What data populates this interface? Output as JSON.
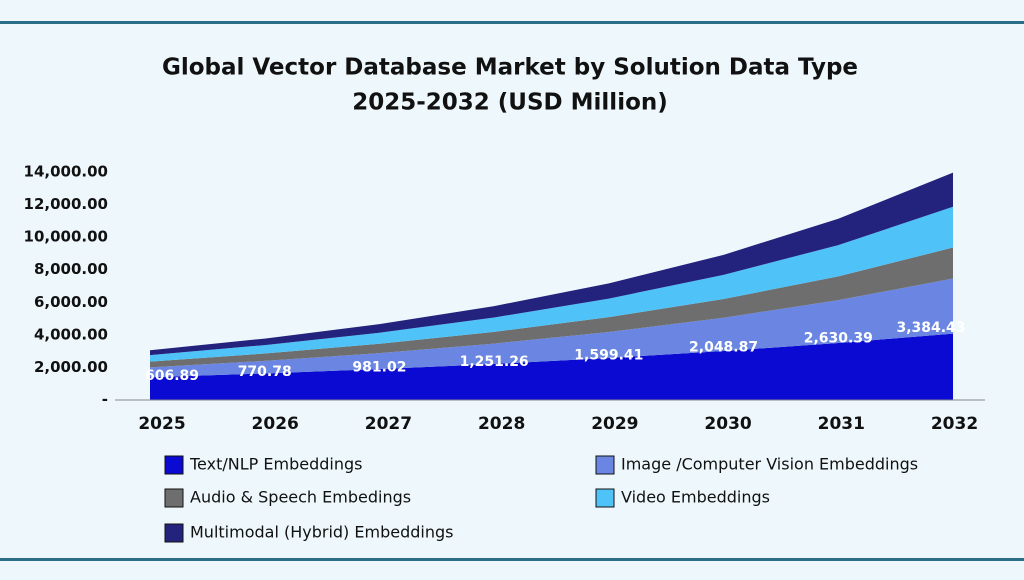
{
  "chart_data": {
    "type": "stacked-area",
    "title": "Global Vector Database Market by Solution Data Type",
    "subtitle": "2025-2032 (USD Million)",
    "categories": [
      "2025",
      "2026",
      "2027",
      "2028",
      "2029",
      "2030",
      "2031",
      "2032"
    ],
    "series": [
      {
        "name": "Text/NLP Embeddings",
        "color": "#0a0ad2",
        "values": [
          1400,
          1631,
          1900,
          2214,
          2579,
          3005,
          3500,
          4078
        ]
      },
      {
        "name": "Image /Computer Vision Embeddings",
        "color": "#6a86e2",
        "values": [
          606.89,
          770.78,
          981.02,
          1251.26,
          1599.41,
          2048.87,
          2630.39,
          3384.43
        ],
        "value_labels": [
          "606.89",
          "770.78",
          "981.02",
          "1,251.26",
          "1,599.41",
          "2,048.87",
          "2,630.39",
          "3,384.43"
        ]
      },
      {
        "name": "Audio & Speech Embedings",
        "color": "#6e6e6e",
        "values": [
          350,
          450,
          570,
          720,
          910,
          1150,
          1460,
          1900
        ]
      },
      {
        "name": "Video Embeddings",
        "color": "#4fc3f7",
        "values": [
          400,
          520,
          680,
          880,
          1140,
          1480,
          1920,
          2500
        ]
      },
      {
        "name": "Multimodal (Hybrid) Embeddings",
        "color": "#23237d",
        "values": [
          300,
          400,
          530,
          700,
          930,
          1230,
          1620,
          2100
        ]
      }
    ],
    "ylim": [
      0,
      14000
    ],
    "yticks": [
      {
        "value": 0,
        "label": "-"
      },
      {
        "value": 2000,
        "label": "2,000.00"
      },
      {
        "value": 4000,
        "label": "4,000.00"
      },
      {
        "value": 6000,
        "label": "6,000.00"
      },
      {
        "value": 8000,
        "label": "8,000.00"
      },
      {
        "value": 10000,
        "label": "10,000.00"
      },
      {
        "value": 12000,
        "label": "12,000.00"
      },
      {
        "value": 14000,
        "label": "14,000.00"
      }
    ],
    "grid": false
  }
}
